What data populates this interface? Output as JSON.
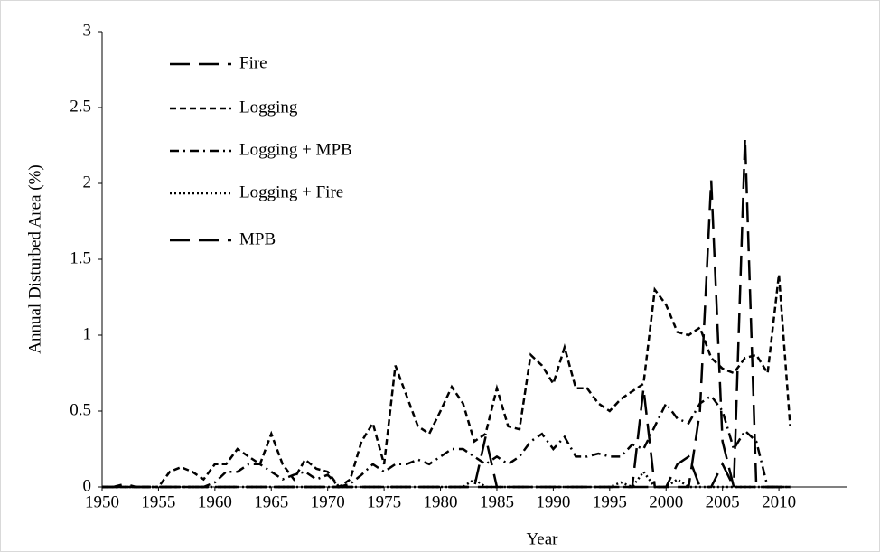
{
  "chart_data": {
    "type": "line",
    "x_label": "Year",
    "y_label": "Annual Disturbed Area (%)",
    "x": [
      1950,
      1951,
      1952,
      1953,
      1954,
      1955,
      1956,
      1957,
      1958,
      1959,
      1960,
      1961,
      1962,
      1963,
      1964,
      1965,
      1966,
      1967,
      1968,
      1969,
      1970,
      1971,
      1972,
      1973,
      1974,
      1975,
      1976,
      1977,
      1978,
      1979,
      1980,
      1981,
      1982,
      1983,
      1984,
      1985,
      1986,
      1987,
      1988,
      1989,
      1990,
      1991,
      1992,
      1993,
      1994,
      1995,
      1996,
      1997,
      1998,
      1999,
      2000,
      2001,
      2002,
      2003,
      2004,
      2005,
      2006,
      2007,
      2008,
      2009,
      2010,
      2011
    ],
    "xlim": [
      1950,
      2016
    ],
    "xticks": [
      1950,
      1955,
      1960,
      1965,
      1970,
      1975,
      1980,
      1985,
      1990,
      1995,
      2000,
      2005,
      2010
    ],
    "ylim": [
      0,
      3
    ],
    "yticks": [
      0,
      0.5,
      1,
      1.5,
      2,
      2.5,
      3
    ],
    "grid": false,
    "legend": "top-left",
    "series": [
      {
        "name": "Fire",
        "color": "#000000",
        "style": "long-dash",
        "values": [
          0,
          0,
          0.02,
          0,
          0,
          0,
          0,
          0,
          0,
          0,
          0,
          0,
          0,
          0,
          0,
          0,
          0,
          0,
          0,
          0,
          0,
          0,
          0,
          0,
          0,
          0,
          0,
          0,
          0,
          0,
          0,
          0,
          0,
          0,
          0.33,
          0,
          0,
          0,
          0,
          0,
          0,
          0,
          0,
          0,
          0,
          0,
          0,
          0,
          0,
          0,
          0,
          0.15,
          0.2,
          0,
          0,
          0.15,
          0,
          0,
          0,
          0,
          0,
          0
        ]
      },
      {
        "name": "Logging",
        "color": "#000000",
        "style": "short-dash",
        "values": [
          0,
          0,
          0,
          0,
          0,
          0,
          0.1,
          0.13,
          0.1,
          0.05,
          0.15,
          0.15,
          0.25,
          0.2,
          0.15,
          0.35,
          0.15,
          0.05,
          0.18,
          0.12,
          0.1,
          0,
          0.05,
          0.3,
          0.42,
          0.15,
          0.8,
          0.6,
          0.4,
          0.35,
          0.5,
          0.66,
          0.55,
          0.3,
          0.35,
          0.65,
          0.4,
          0.38,
          0.87,
          0.8,
          0.68,
          0.92,
          0.65,
          0.65,
          0.55,
          0.5,
          0.58,
          0.63,
          0.68,
          1.3,
          1.2,
          1.02,
          1,
          1.05,
          0.85,
          0.78,
          0.75,
          0.85,
          0.87,
          0.75,
          1.4,
          0.4
        ]
      },
      {
        "name": "Logging + MPB",
        "color": "#000000",
        "style": "dash-dot",
        "values": [
          0,
          0,
          0,
          0,
          0,
          0,
          0,
          0,
          0,
          0,
          0.03,
          0.1,
          0.1,
          0.15,
          0.15,
          0.1,
          0.05,
          0.08,
          0.1,
          0.05,
          0.08,
          0,
          0.02,
          0.08,
          0.15,
          0.1,
          0.15,
          0.15,
          0.18,
          0.15,
          0.2,
          0.25,
          0.25,
          0.2,
          0.15,
          0.2,
          0.15,
          0.2,
          0.3,
          0.35,
          0.25,
          0.33,
          0.2,
          0.2,
          0.22,
          0.2,
          0.2,
          0.28,
          0.25,
          0.4,
          0.55,
          0.45,
          0.42,
          0.55,
          0.6,
          0.5,
          0.25,
          0.37,
          0.3,
          0,
          0,
          0
        ]
      },
      {
        "name": "Logging + Fire",
        "color": "#000000",
        "style": "dot",
        "values": [
          0,
          0,
          0,
          0,
          0,
          0,
          0,
          0,
          0,
          0,
          0,
          0,
          0,
          0,
          0,
          0,
          0,
          0,
          0,
          0,
          0,
          0,
          0,
          0,
          0,
          0,
          0,
          0,
          0,
          0,
          0,
          0,
          0,
          0.05,
          0,
          0,
          0,
          0,
          0,
          0,
          0,
          0,
          0,
          0,
          0,
          0,
          0.03,
          0,
          0.1,
          0,
          0,
          0.05,
          0,
          0,
          0,
          0,
          0,
          0,
          0,
          0,
          0,
          0
        ]
      },
      {
        "name": "MPB",
        "color": "#000000",
        "style": "long-dash",
        "values": [
          0,
          0,
          0,
          0,
          0,
          0,
          0,
          0,
          0,
          0,
          0,
          0,
          0,
          0,
          0,
          0,
          0,
          0,
          0,
          0,
          0,
          0,
          0,
          0,
          0,
          0,
          0,
          0,
          0,
          0,
          0,
          0,
          0,
          0,
          0,
          0,
          0,
          0,
          0,
          0,
          0,
          0,
          0,
          0,
          0,
          0,
          0,
          0,
          0.65,
          0,
          0,
          0,
          0,
          0.5,
          2.02,
          0.3,
          0,
          2.3,
          0,
          0,
          0,
          0
        ]
      }
    ]
  }
}
